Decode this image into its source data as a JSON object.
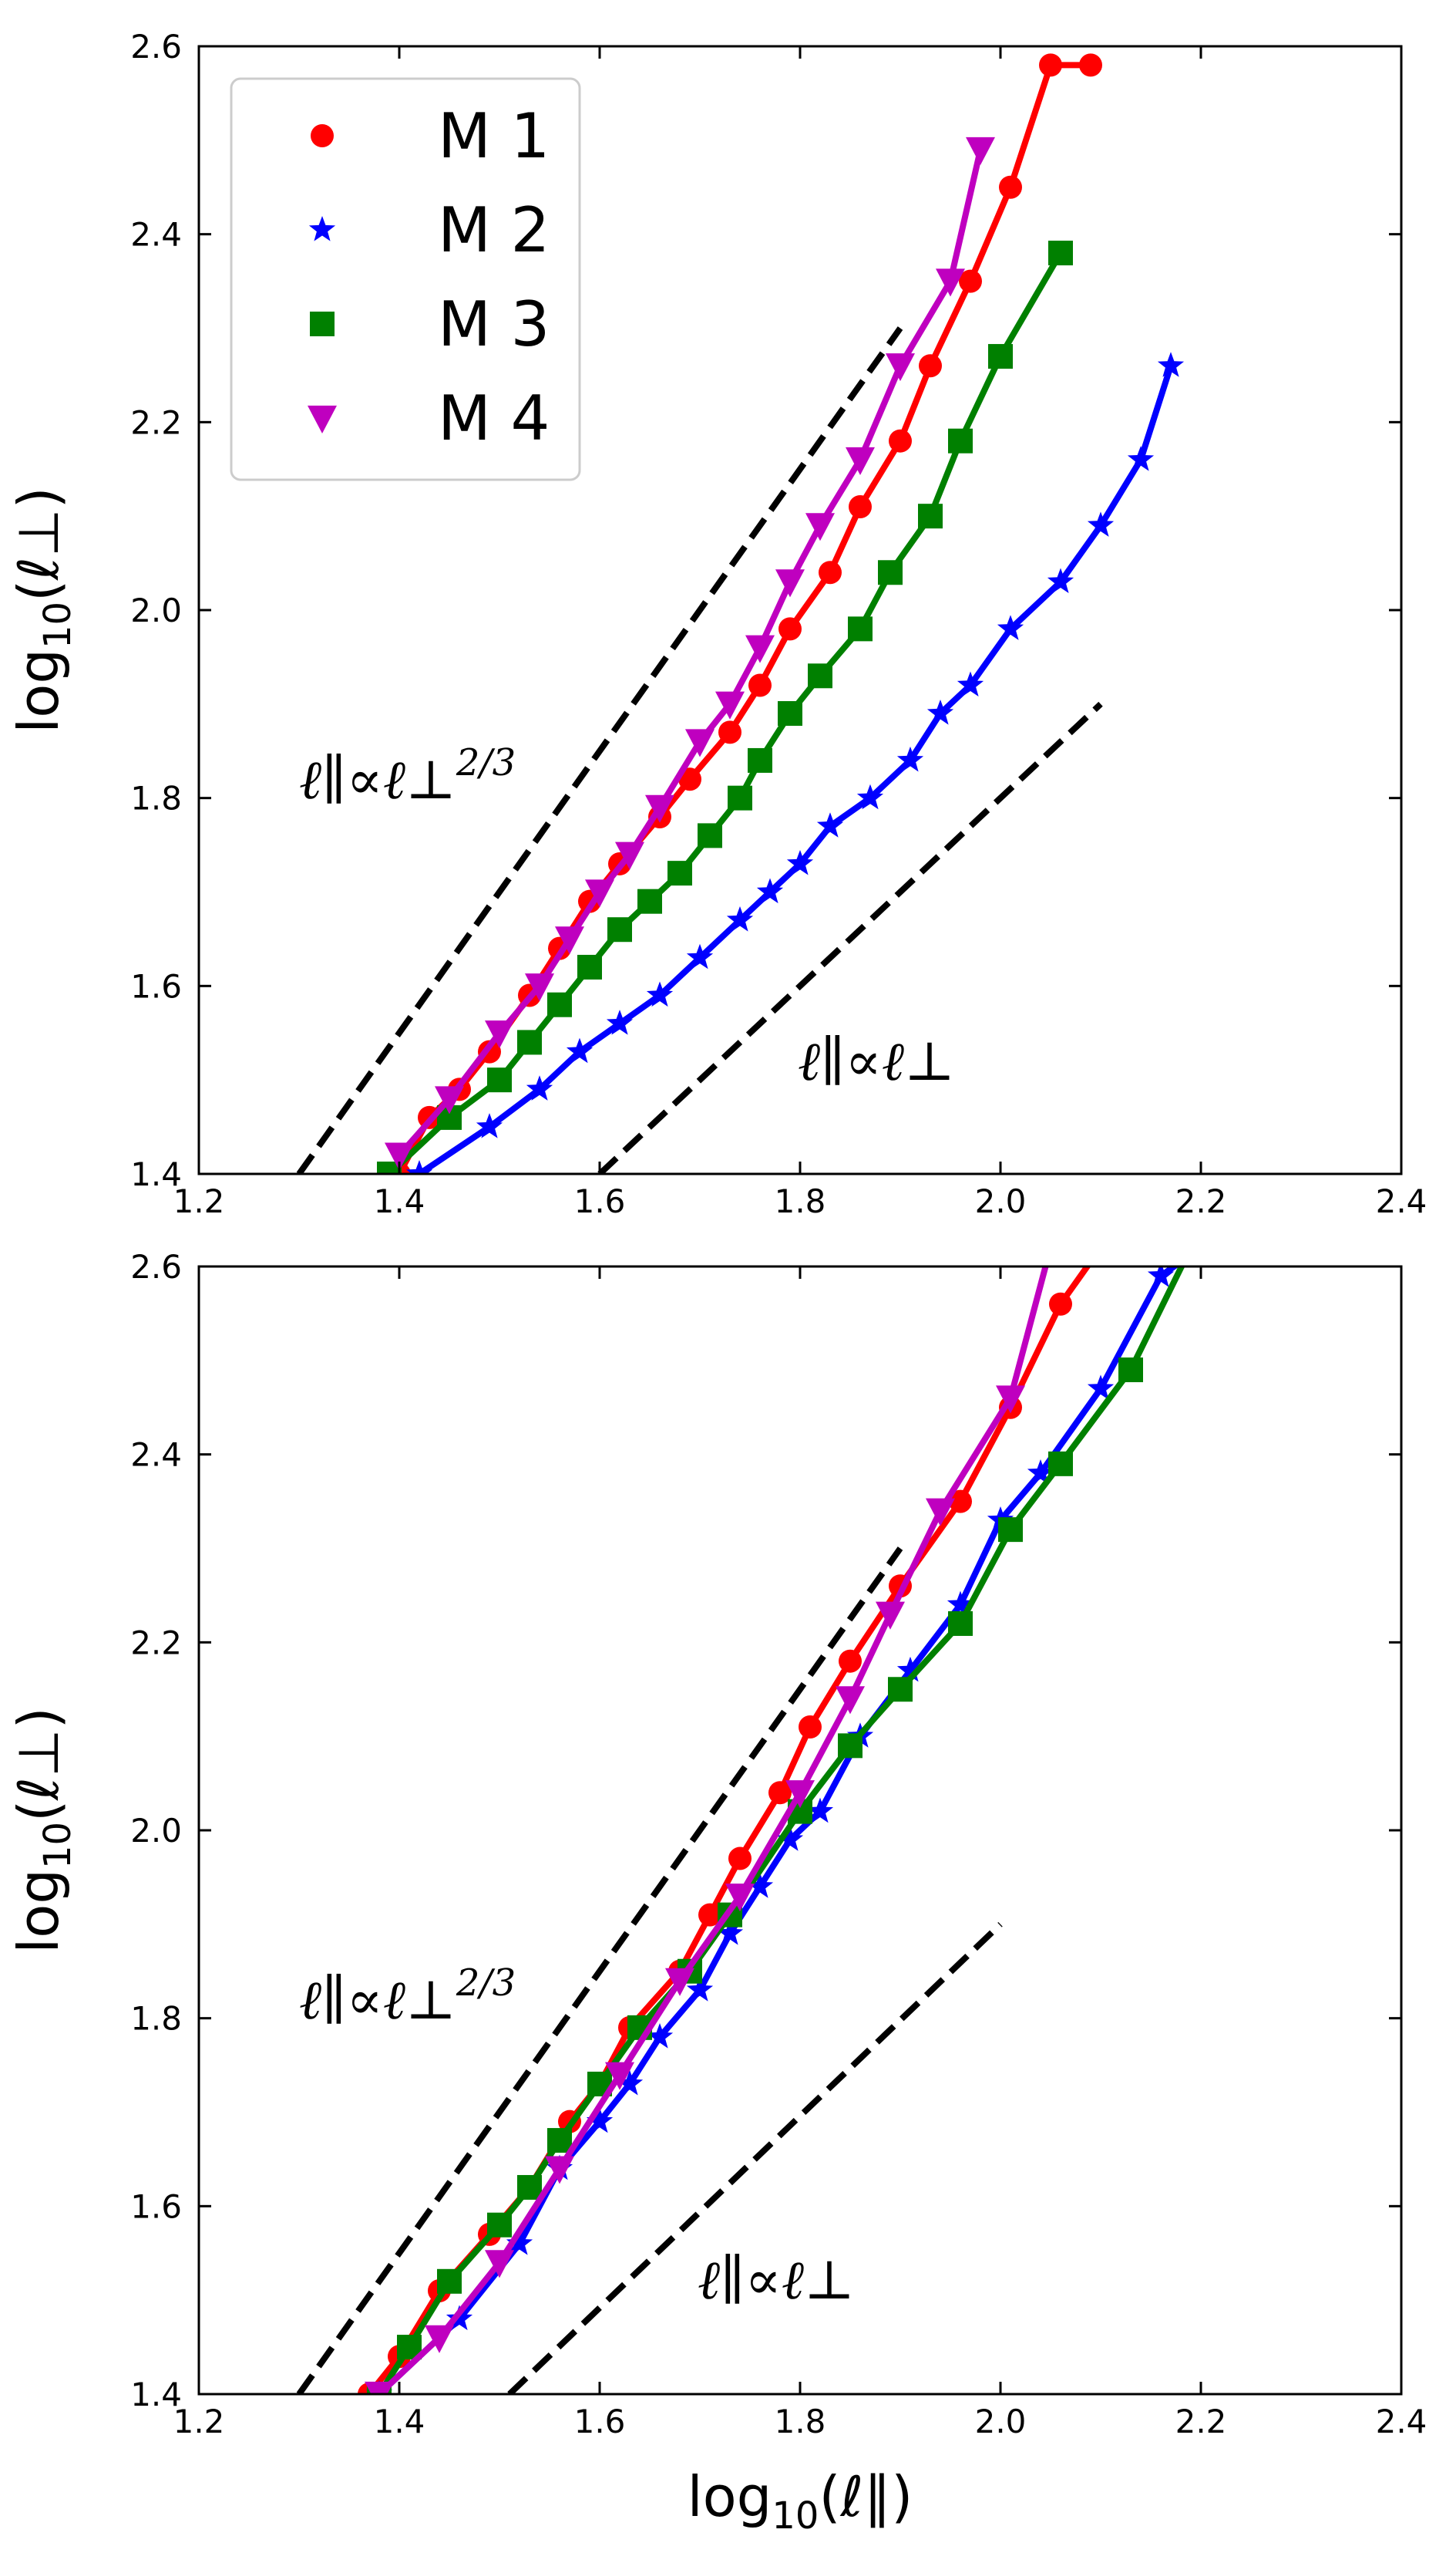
{
  "chart_data": [
    {
      "type": "line",
      "xlabel": "",
      "ylabel": "log10(ℓ⊥)",
      "xlim": [
        1.2,
        2.4
      ],
      "ylim": [
        1.4,
        2.6
      ],
      "xticks": [
        "1.2",
        "1.4",
        "1.6",
        "1.8",
        "2.0",
        "2.2",
        "2.4"
      ],
      "yticks": [
        "1.4",
        "1.6",
        "1.8",
        "2.0",
        "2.2",
        "2.4",
        "2.6"
      ],
      "grid": false,
      "legend": {
        "placement": "top-left",
        "entries": [
          "M 1",
          "M 2",
          "M 3",
          "M 4"
        ]
      },
      "series": [
        {
          "name": "M 1",
          "color": "#ff0000",
          "marker": "circle",
          "x": [
            1.4,
            1.43,
            1.46,
            1.49,
            1.53,
            1.56,
            1.59,
            1.62,
            1.66,
            1.69,
            1.73,
            1.76,
            1.79,
            1.83,
            1.86,
            1.9,
            1.93,
            1.97,
            2.01,
            2.05,
            2.09
          ],
          "y": [
            1.4,
            1.46,
            1.49,
            1.53,
            1.59,
            1.64,
            1.69,
            1.73,
            1.78,
            1.82,
            1.87,
            1.92,
            1.98,
            2.04,
            2.11,
            2.18,
            2.26,
            2.35,
            2.45,
            2.58,
            2.58
          ]
        },
        {
          "name": "M 2",
          "color": "#0000ff",
          "marker": "star",
          "x": [
            1.42,
            1.49,
            1.54,
            1.58,
            1.62,
            1.66,
            1.7,
            1.74,
            1.77,
            1.8,
            1.83,
            1.87,
            1.91,
            1.94,
            1.97,
            2.01,
            2.06,
            2.1,
            2.14,
            2.17
          ],
          "y": [
            1.4,
            1.45,
            1.49,
            1.53,
            1.56,
            1.59,
            1.63,
            1.67,
            1.7,
            1.73,
            1.77,
            1.8,
            1.84,
            1.89,
            1.92,
            1.98,
            2.03,
            2.09,
            2.16,
            2.26
          ]
        },
        {
          "name": "M 3",
          "color": "#008000",
          "marker": "square",
          "x": [
            1.39,
            1.45,
            1.5,
            1.53,
            1.56,
            1.59,
            1.62,
            1.65,
            1.68,
            1.71,
            1.74,
            1.76,
            1.79,
            1.82,
            1.86,
            1.89,
            1.93,
            1.96,
            2.0,
            2.06
          ],
          "y": [
            1.4,
            1.46,
            1.5,
            1.54,
            1.58,
            1.62,
            1.66,
            1.69,
            1.72,
            1.76,
            1.8,
            1.84,
            1.89,
            1.93,
            1.98,
            2.04,
            2.1,
            2.18,
            2.27,
            2.38
          ]
        },
        {
          "name": "M 4",
          "color": "#bf00bf",
          "marker": "triangle-down",
          "x": [
            1.4,
            1.45,
            1.5,
            1.54,
            1.57,
            1.6,
            1.63,
            1.66,
            1.7,
            1.73,
            1.76,
            1.79,
            1.82,
            1.86,
            1.9,
            1.95,
            1.98
          ],
          "y": [
            1.42,
            1.48,
            1.55,
            1.6,
            1.65,
            1.7,
            1.74,
            1.79,
            1.86,
            1.9,
            1.96,
            2.03,
            2.09,
            2.16,
            2.26,
            2.35,
            2.49
          ]
        }
      ],
      "reference_lines": [
        {
          "label_main": "ℓ∥∝ℓ⊥",
          "label_sup": "2/3",
          "x": [
            1.3,
            1.9
          ],
          "y": [
            1.4,
            2.3
          ]
        },
        {
          "label_main": "ℓ∥∝ℓ⊥",
          "label_sup": "",
          "x": [
            1.6,
            2.1
          ],
          "y": [
            1.4,
            1.9
          ]
        }
      ]
    },
    {
      "type": "line",
      "xlabel": "log10(ℓ∥)",
      "ylabel": "log10(ℓ⊥)",
      "xlim": [
        1.2,
        2.4
      ],
      "ylim": [
        1.4,
        2.6
      ],
      "xticks": [
        "1.2",
        "1.4",
        "1.6",
        "1.8",
        "2.0",
        "2.2",
        "2.4"
      ],
      "yticks": [
        "1.4",
        "1.6",
        "1.8",
        "2.0",
        "2.2",
        "2.4",
        "2.6"
      ],
      "grid": false,
      "series": [
        {
          "name": "M 1",
          "color": "#ff0000",
          "marker": "circle",
          "x": [
            1.37,
            1.4,
            1.44,
            1.49,
            1.53,
            1.57,
            1.6,
            1.63,
            1.68,
            1.71,
            1.74,
            1.78,
            1.81,
            1.85,
            1.9,
            1.96,
            2.01,
            2.06,
            2.1
          ],
          "y": [
            1.4,
            1.44,
            1.51,
            1.57,
            1.62,
            1.69,
            1.73,
            1.79,
            1.85,
            1.91,
            1.97,
            2.04,
            2.11,
            2.18,
            2.26,
            2.35,
            2.45,
            2.56,
            2.62
          ]
        },
        {
          "name": "M 2",
          "color": "#0000ff",
          "marker": "star",
          "x": [
            1.38,
            1.46,
            1.52,
            1.56,
            1.6,
            1.63,
            1.66,
            1.7,
            1.73,
            1.76,
            1.79,
            1.82,
            1.86,
            1.91,
            1.96,
            2.0,
            2.04,
            2.1,
            2.16,
            2.2
          ],
          "y": [
            1.4,
            1.48,
            1.56,
            1.64,
            1.69,
            1.73,
            1.78,
            1.83,
            1.89,
            1.94,
            1.99,
            2.02,
            2.1,
            2.17,
            2.24,
            2.33,
            2.38,
            2.47,
            2.59,
            2.62
          ]
        },
        {
          "name": "M 3",
          "color": "#008000",
          "marker": "square",
          "x": [
            1.38,
            1.41,
            1.45,
            1.5,
            1.53,
            1.56,
            1.6,
            1.64,
            1.69,
            1.73,
            1.8,
            1.85,
            1.9,
            1.96,
            2.01,
            2.06,
            2.13,
            2.19
          ],
          "y": [
            1.4,
            1.45,
            1.52,
            1.58,
            1.62,
            1.67,
            1.73,
            1.79,
            1.85,
            1.91,
            2.02,
            2.09,
            2.15,
            2.22,
            2.32,
            2.39,
            2.49,
            2.62
          ]
        },
        {
          "name": "M 4",
          "color": "#bf00bf",
          "marker": "triangle-down",
          "x": [
            1.38,
            1.44,
            1.5,
            1.56,
            1.62,
            1.68,
            1.74,
            1.8,
            1.85,
            1.89,
            1.94,
            2.01,
            2.05
          ],
          "y": [
            1.4,
            1.46,
            1.54,
            1.64,
            1.74,
            1.84,
            1.93,
            2.04,
            2.14,
            2.23,
            2.34,
            2.46,
            2.62
          ]
        }
      ],
      "reference_lines": [
        {
          "label_main": "ℓ∥∝ℓ⊥",
          "label_sup": "2/3",
          "x": [
            1.3,
            1.9
          ],
          "y": [
            1.4,
            2.3
          ]
        },
        {
          "label_main": "ℓ∥∝ℓ⊥",
          "label_sup": "",
          "x": [
            1.51,
            2.0
          ],
          "y": [
            1.4,
            1.9
          ]
        }
      ]
    }
  ]
}
